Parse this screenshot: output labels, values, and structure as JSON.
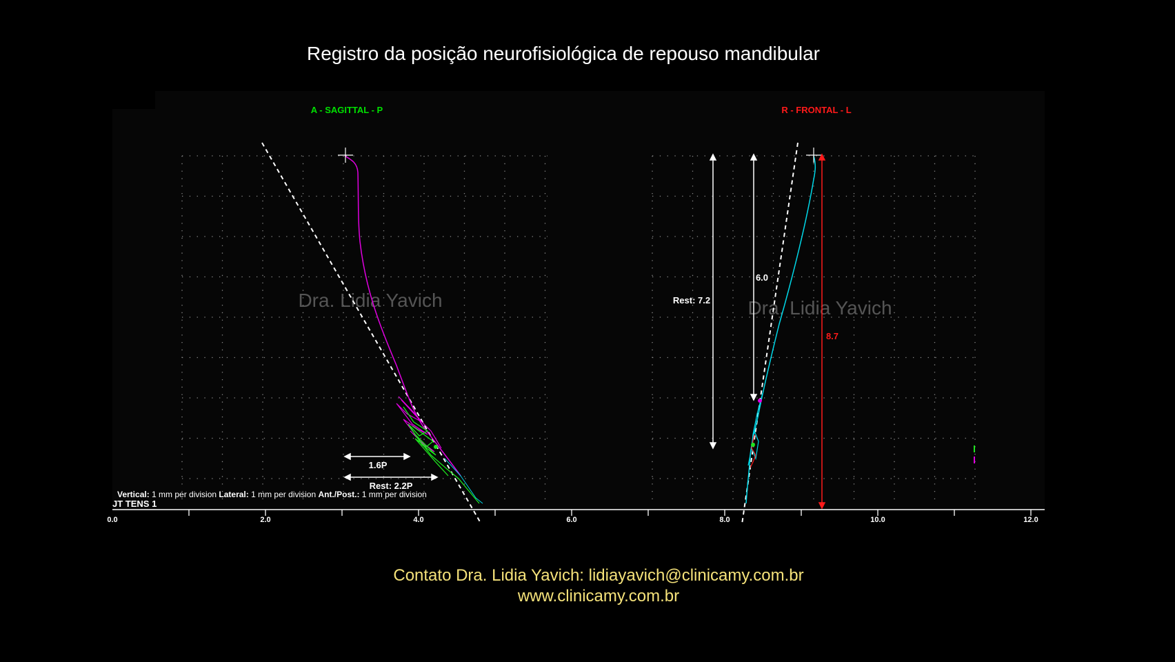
{
  "title": "Registro da posição neurofisiológica de repouso mandibular",
  "contact": {
    "line1": "Contato  Dra. Lidia Yavich:  lidiayavich@clinicamy.com.br",
    "line2": "www.clinicamy.com.br"
  },
  "colors": {
    "sagittal_label": "#00e000",
    "frontal_label": "#ff1a1a",
    "sagittal_trace": "#e000e0",
    "frontal_trace": "#00d8e8",
    "contact": "#f5e27a",
    "measure_red": "#ff1a1a"
  },
  "chart_data": {
    "type": "line",
    "tick_labels": [
      "0.0",
      "2.0",
      "4.0",
      "6.0",
      "8.0",
      "10.0",
      "12.0"
    ],
    "x_range": [
      0,
      12
    ],
    "grid": "dotted",
    "scale_text": {
      "vertical_key": "Vertical:",
      "vertical_val": " 1 mm per division ",
      "lateral_key": "Lateral:",
      "lateral_val": " 1 mm per division ",
      "antpost_key": "Ant./Post.:",
      "antpost_val": " 1 mm per division"
    },
    "scan_label": "JT TENS 1",
    "watermark": "Dra. Lidia Yavich",
    "sagittal": {
      "label": "A - SAGITTAL - P",
      "measurements": [
        "1.6P",
        "Rest: 2.2P"
      ]
    },
    "frontal": {
      "label": "R - FRONTAL - L",
      "measurements": [
        "Rest: 7.2",
        "6.0",
        "8.7"
      ]
    }
  }
}
